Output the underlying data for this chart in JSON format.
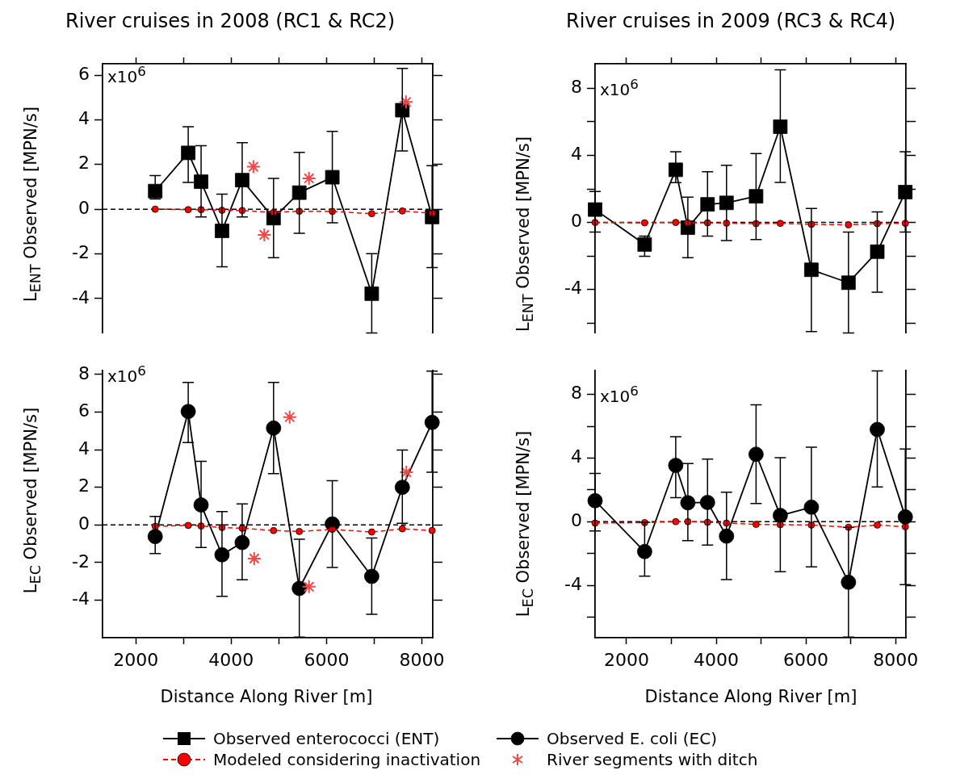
{
  "chart_data": [
    {
      "type": "line",
      "title": "River cruises in 2008 (RC1 & RC2)",
      "ylabel": "L$_{ENT}$ Observed [MPN/s]",
      "annotations": [
        "x10$^{6}$"
      ],
      "x": [
        2405,
        3098,
        3368,
        3807,
        4230,
        4889,
        5429,
        6122,
        6949,
        7591,
        8216
      ],
      "xlim": [
        1300,
        8230
      ],
      "xticks": [
        {
          "value": 2000,
          "label": null
        },
        {
          "value": 3000,
          "label": null
        },
        {
          "value": 4000,
          "label": null
        },
        {
          "value": 5000,
          "label": null
        },
        {
          "value": 6000,
          "label": null
        },
        {
          "value": 7000,
          "label": null
        },
        {
          "value": 8000,
          "label": null
        }
      ],
      "ylim": [
        -5.55,
        6.5
      ],
      "yticks": [
        -4,
        -2,
        0,
        2,
        4,
        6
      ],
      "tick_labels": "y",
      "legend": "bottom",
      "ref_lines": [
        {
          "axis": "y",
          "value": 0,
          "color": "#000000",
          "line_style": "dashed"
        }
      ],
      "series": [
        {
          "name": "Observed enterococci (ENT)",
          "color": "#000000",
          "marker": "square",
          "line_style": "solid",
          "values": [
            0.81,
            2.52,
            1.23,
            -0.97,
            1.3,
            -0.4,
            0.74,
            1.43,
            -3.78,
            4.43,
            -0.35
          ],
          "errors": [
            [
              0.46,
              1.5
            ],
            [
              1.2,
              3.69
            ],
            [
              -0.35,
              2.84
            ],
            [
              -2.58,
              0.67
            ],
            [
              -0.35,
              2.98
            ],
            [
              -2.17,
              1.38
            ],
            [
              -1.08,
              2.54
            ],
            [
              -0.61,
              3.48
            ],
            [
              -5.54,
              -1.99
            ],
            [
              2.61,
              6.3
            ],
            [
              -2.61,
              1.95
            ]
          ]
        },
        {
          "name": "Modeled considering inactivation",
          "color": "#ff0000",
          "marker": "circle",
          "line_style": "dashed",
          "values": [
            0,
            -0.02,
            -0.02,
            -0.05,
            -0.06,
            -0.15,
            -0.09,
            -0.1,
            -0.2,
            -0.08,
            -0.18
          ]
        },
        {
          "type": "scatter",
          "color": "#f04848",
          "marker": "cross",
          "x": [
            4466,
            4694,
            5632,
            7669
          ],
          "values": [
            1.9,
            -1.15,
            1.38,
            4.8
          ]
        }
      ]
    },
    {
      "type": "line",
      "title": "River cruises in 2009 (RC3 & RC4)",
      "ylabel": "L$_{ENT}$ Observed [MPN/s]",
      "annotations": [
        "x10$^{6}$"
      ],
      "x": [
        1300,
        2405,
        3098,
        3368,
        3807,
        4230,
        4889,
        5429,
        6122,
        6949,
        7591,
        8216
      ],
      "xlim": [
        1300,
        8230
      ],
      "xticks": [
        {
          "value": 2000,
          "label": null
        },
        {
          "value": 3000,
          "label": null
        },
        {
          "value": 4000,
          "label": null
        },
        {
          "value": 5000,
          "label": null
        },
        {
          "value": 6000,
          "label": null
        },
        {
          "value": 7000,
          "label": null
        },
        {
          "value": 8000,
          "label": null
        }
      ],
      "ylim": [
        -6.6,
        9.45
      ],
      "yticks": [
        {
          "value": -6,
          "label": null
        },
        -4,
        {
          "value": -2,
          "label": null
        },
        0,
        {
          "value": 2,
          "label": null
        },
        4,
        {
          "value": 6,
          "label": null
        },
        8
      ],
      "tick_labels": "y",
      "ref_lines": [
        {
          "axis": "y",
          "value": 0,
          "color": "#000000",
          "line_style": "dashed"
        }
      ],
      "series": [
        {
          "color": "#000000",
          "marker": "square",
          "line_style": "solid",
          "values": [
            0.77,
            -1.31,
            3.14,
            -0.31,
            1.08,
            1.17,
            1.56,
            5.71,
            -2.82,
            -3.59,
            -1.74,
            1.81
          ],
          "errors": [
            [
              -0.57,
              1.85
            ],
            [
              -2.01,
              -0.81
            ],
            [
              2.37,
              4.22
            ],
            [
              -2.1,
              1.51
            ],
            [
              -0.81,
              3.03
            ],
            [
              -1.08,
              3.41
            ],
            [
              -1.02,
              4.11
            ],
            [
              2.39,
              9.1
            ],
            [
              -6.5,
              0.84
            ],
            [
              -6.59,
              -0.57
            ],
            [
              -4.15,
              0.63
            ],
            [
              -0.57,
              4.22
            ]
          ]
        },
        {
          "color": "#ff0000",
          "marker": "circle",
          "line_style": "dashed",
          "values": [
            0,
            -0.02,
            0,
            -0.02,
            -0.02,
            -0.04,
            -0.07,
            -0.05,
            -0.11,
            -0.14,
            -0.07,
            -0.05
          ]
        }
      ]
    },
    {
      "type": "line",
      "xlabel": "Distance Along River [m]",
      "ylabel": "L$_{EC}$ Observed [MPN/s]",
      "annotations": [
        "x10$^{6}$"
      ],
      "x": [
        2405,
        3098,
        3368,
        3807,
        4230,
        4889,
        5429,
        6122,
        6949,
        7591,
        8216
      ],
      "xlim": [
        1300,
        8230
      ],
      "xticks": [
        2000,
        {
          "value": 3000,
          "label": null
        },
        4000,
        {
          "value": 5000,
          "label": null
        },
        6000,
        {
          "value": 7000,
          "label": null
        },
        8000
      ],
      "ylim": [
        -6,
        8.2
      ],
      "yticks": [
        -4,
        -2,
        0,
        2,
        4,
        6,
        8
      ],
      "legend": "bottom",
      "ref_lines": [
        {
          "axis": "y",
          "value": 0,
          "color": "#000000",
          "line_style": "dashed"
        }
      ],
      "series": [
        {
          "name": "Observed E. coli (EC)",
          "color": "#000000",
          "marker": "circle",
          "line_style": "solid",
          "values": [
            -0.62,
            6.03,
            1.06,
            -1.59,
            -0.94,
            5.15,
            -3.38,
            0.05,
            -2.74,
            2.0,
            5.45
          ],
          "errors": [
            [
              -1.53,
              0.45
            ],
            [
              4.38,
              7.58
            ],
            [
              -1.2,
              3.38
            ],
            [
              -3.8,
              0.71
            ],
            [
              -2.92,
              1.11
            ],
            [
              2.73,
              7.58
            ],
            [
              -5.97,
              -0.76
            ],
            [
              -2.27,
              2.35
            ],
            [
              -4.76,
              -0.7
            ],
            [
              0.08,
              3.98
            ],
            [
              2.8,
              8.18
            ]
          ]
        },
        {
          "color": "#ff0000",
          "marker": "circle",
          "line_style": "dashed",
          "values": [
            -0.08,
            -0.03,
            -0.06,
            -0.14,
            -0.18,
            -0.3,
            -0.35,
            -0.24,
            -0.38,
            -0.21,
            -0.3
          ]
        },
        {
          "name": "River segments with ditch",
          "type": "scatter",
          "color": "#f04848",
          "marker": "cross",
          "x": [
            5226,
            4483,
            5632,
            7676
          ],
          "values": [
            5.73,
            -1.79,
            -3.29,
            2.8
          ]
        }
      ]
    },
    {
      "type": "line",
      "xlabel": "Distance Along River  [m]",
      "ylabel": "L$_{EC}$ Observed [MPN/s]",
      "annotations": [
        "x10$^{6}$"
      ],
      "x": [
        1300,
        2405,
        3098,
        3368,
        3807,
        4230,
        4889,
        5429,
        6122,
        6949,
        7591,
        8216
      ],
      "xlim": [
        1300,
        8230
      ],
      "xticks": [
        2000,
        {
          "value": 3000,
          "label": null
        },
        4000,
        {
          "value": 5000,
          "label": null
        },
        6000,
        {
          "value": 7000,
          "label": null
        },
        8000
      ],
      "ylim": [
        -7.3,
        9.5
      ],
      "yticks": [
        {
          "value": -6,
          "label": null
        },
        -4,
        {
          "value": -2,
          "label": null
        },
        0,
        {
          "value": 2,
          "label": null
        },
        4,
        {
          "value": 6,
          "label": null
        },
        8
      ],
      "ref_lines": [
        {
          "axis": "y",
          "value": 0,
          "color": "#000000",
          "line_style": "dashed"
        }
      ],
      "series": [
        {
          "color": "#000000",
          "marker": "circle",
          "line_style": "solid",
          "values": [
            1.32,
            -1.88,
            3.54,
            1.19,
            1.21,
            -0.91,
            4.24,
            0.39,
            0.91,
            -3.81,
            5.8,
            0.3
          ],
          "errors": [
            [
              -0.58,
              3.04
            ],
            [
              -3.43,
              -0.04
            ],
            [
              1.51,
              5.34
            ],
            [
              -1.19,
              3.66
            ],
            [
              -1.47,
              3.94
            ],
            [
              -3.64,
              1.85
            ],
            [
              1.14,
              7.35
            ],
            [
              -3.15,
              4.03
            ],
            [
              -2.84,
              4.68
            ],
            [
              -7.26,
              -0.35
            ],
            [
              2.18,
              9.48
            ],
            [
              -3.96,
              4.57
            ]
          ]
        },
        {
          "color": "#ff0000",
          "marker": "circle",
          "line_style": "dashed",
          "values": [
            -0.09,
            -0.06,
            0,
            0,
            -0.04,
            -0.09,
            -0.17,
            -0.19,
            -0.21,
            -0.35,
            -0.21,
            -0.32
          ]
        }
      ]
    }
  ]
}
